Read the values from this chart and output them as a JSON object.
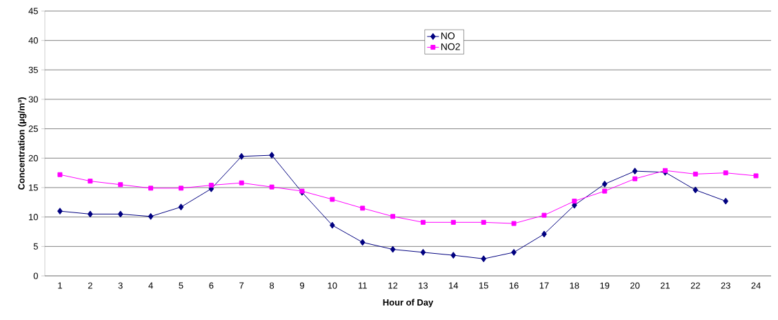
{
  "chart_data": {
    "type": "line",
    "xlabel": "Hour of Day",
    "ylabel": "Concentration (µg/m³)",
    "categories": [
      "1",
      "2",
      "3",
      "4",
      "5",
      "6",
      "7",
      "8",
      "9",
      "10",
      "11",
      "12",
      "13",
      "14",
      "15",
      "16",
      "17",
      "18",
      "19",
      "20",
      "21",
      "22",
      "23",
      "24"
    ],
    "series": [
      {
        "name": "NO",
        "color": "#000080",
        "marker": "diamond",
        "values": [
          11.0,
          10.5,
          10.5,
          10.1,
          11.7,
          14.8,
          20.3,
          20.5,
          14.2,
          8.6,
          5.7,
          4.5,
          4.0,
          3.5,
          2.9,
          4.0,
          7.1,
          12.0,
          15.6,
          17.8,
          17.6,
          14.6,
          12.7,
          null
        ]
      },
      {
        "name": "NO2",
        "color": "#ff00ff",
        "marker": "square",
        "values": [
          17.2,
          16.1,
          15.5,
          14.9,
          14.9,
          15.4,
          15.8,
          15.1,
          14.4,
          13.0,
          11.5,
          10.1,
          9.1,
          9.1,
          9.1,
          8.9,
          10.3,
          12.7,
          14.4,
          16.5,
          17.9,
          17.3,
          17.5,
          17.0
        ]
      }
    ],
    "ylim": [
      0,
      45
    ],
    "yticks": [
      0,
      5,
      10,
      15,
      20,
      25,
      30,
      35,
      40,
      45
    ],
    "grid": "y",
    "legend": "top",
    "line_style": "solid"
  }
}
